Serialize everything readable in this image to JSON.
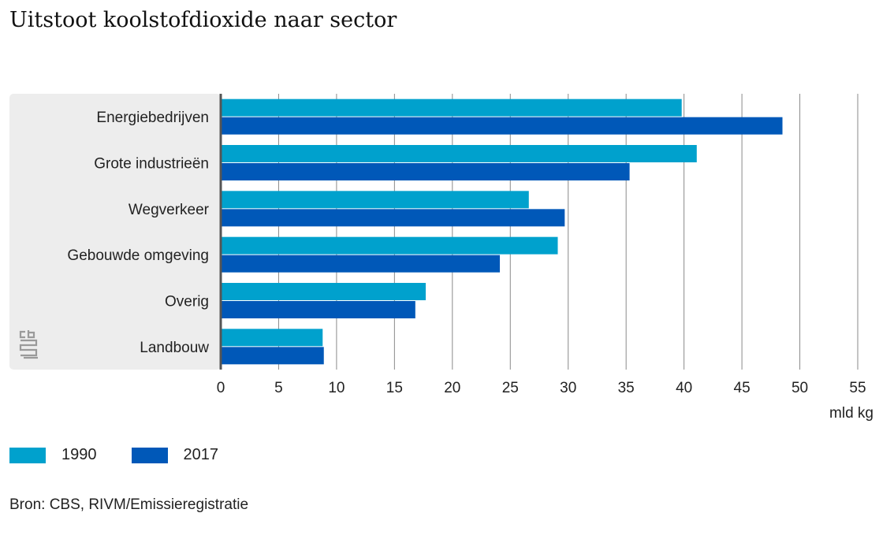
{
  "colors": {
    "series_1990": "#00A1CD",
    "series_2017": "#0058B8",
    "panel": "#EDEDED",
    "grid": "#8A8A8A",
    "axis": "#555555"
  },
  "source": "Bron: CBS, RIVM/Emissieregistratie",
  "logo_icon": "cbs-logo-icon",
  "chart_data": {
    "type": "bar",
    "orientation": "horizontal",
    "title": "Uitstoot koolstofdioxide naar sector",
    "xlabel": "mld kg",
    "ylabel": "",
    "categories": [
      "Energiebedrijven",
      "Grote industrieën",
      "Wegverkeer",
      "Gebouwde omgeving",
      "Overig",
      "Landbouw"
    ],
    "series": [
      {
        "name": "1990",
        "values": [
          39.8,
          41.1,
          26.6,
          29.1,
          17.7,
          8.8
        ]
      },
      {
        "name": "2017",
        "values": [
          48.5,
          35.3,
          29.7,
          24.1,
          16.8,
          8.9
        ]
      }
    ],
    "xlim": [
      0,
      55
    ],
    "xticks": [
      0,
      5,
      10,
      15,
      20,
      25,
      30,
      35,
      40,
      45,
      50,
      55
    ],
    "grid": true,
    "legend_position": "bottom-left"
  }
}
